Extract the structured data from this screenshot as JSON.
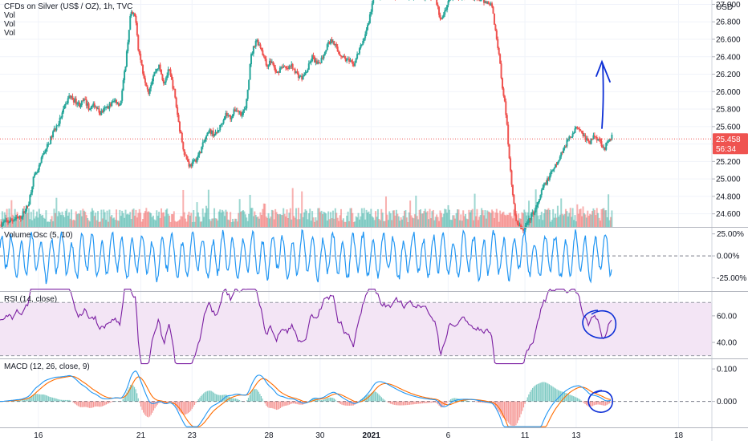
{
  "header": {
    "title": "CFDs on Silver (US$ / OZ), 1h, TVC",
    "vol_lines": [
      "Vol",
      "Vol",
      "Vol"
    ]
  },
  "currency": "USD",
  "price_badge": {
    "price": "25.458",
    "countdown": "56:34",
    "value": 25.458
  },
  "colors": {
    "up": "#26a69a",
    "down": "#ef5350",
    "osc": "#2196f3",
    "rsi": "#7b1fa2",
    "rsi_band": "#f3e5f5",
    "macd": "#2196f3",
    "signal": "#ff6d00",
    "annotation": "#0d2fd6",
    "badge": "#ef5350"
  },
  "chart_data": [
    {
      "type": "candlestick",
      "title": "CFDs on Silver (US$ / OZ), 1h, TVC",
      "x_labels": [
        "16",
        "21",
        "23",
        "28",
        "30",
        "2021",
        "6",
        "11",
        "13",
        "18"
      ],
      "x_label_positions": [
        0.5,
        4.5,
        6.5,
        9.5,
        11.5,
        13.5,
        16.5,
        19.5,
        21.5,
        25.5
      ],
      "y_ticks": [
        "27.000",
        "26.800",
        "26.600",
        "26.400",
        "26.200",
        "26.000",
        "25.800",
        "25.600",
        "25.400",
        "25.200",
        "25.000",
        "24.800",
        "24.600"
      ],
      "y_range": [
        24.45,
        27.05
      ],
      "x_range": [
        -1.0,
        26.8
      ],
      "last_price": 25.458,
      "close_path": [
        [
          -1.0,
          24.48
        ],
        [
          -0.6,
          24.52
        ],
        [
          -0.2,
          24.56
        ],
        [
          0.1,
          24.7
        ],
        [
          0.3,
          25.0
        ],
        [
          0.5,
          25.1
        ],
        [
          0.7,
          25.3
        ],
        [
          0.9,
          25.4
        ],
        [
          1.1,
          25.55
        ],
        [
          1.3,
          25.65
        ],
        [
          1.5,
          25.8
        ],
        [
          1.7,
          25.95
        ],
        [
          1.9,
          25.9
        ],
        [
          2.1,
          25.85
        ],
        [
          2.3,
          25.9
        ],
        [
          2.5,
          25.8
        ],
        [
          2.7,
          25.85
        ],
        [
          2.9,
          25.75
        ],
        [
          3.1,
          25.8
        ],
        [
          3.3,
          25.85
        ],
        [
          3.5,
          25.9
        ],
        [
          3.7,
          25.85
        ],
        [
          3.9,
          26.3
        ],
        [
          4.1,
          26.9
        ],
        [
          4.3,
          26.85
        ],
        [
          4.4,
          26.5
        ],
        [
          4.6,
          26.2
        ],
        [
          4.8,
          26.0
        ],
        [
          5.0,
          26.2
        ],
        [
          5.2,
          26.3
        ],
        [
          5.4,
          26.1
        ],
        [
          5.6,
          26.25
        ],
        [
          5.8,
          26.0
        ],
        [
          6.0,
          25.6
        ],
        [
          6.2,
          25.3
        ],
        [
          6.4,
          25.15
        ],
        [
          6.6,
          25.2
        ],
        [
          6.8,
          25.3
        ],
        [
          7.0,
          25.45
        ],
        [
          7.2,
          25.55
        ],
        [
          7.4,
          25.5
        ],
        [
          7.6,
          25.6
        ],
        [
          7.8,
          25.75
        ],
        [
          8.0,
          25.7
        ],
        [
          8.2,
          25.8
        ],
        [
          8.4,
          25.75
        ],
        [
          8.6,
          25.8
        ],
        [
          8.8,
          26.4
        ],
        [
          9.0,
          26.6
        ],
        [
          9.2,
          26.5
        ],
        [
          9.4,
          26.3
        ],
        [
          9.6,
          26.35
        ],
        [
          9.8,
          26.2
        ],
        [
          10.0,
          26.3
        ],
        [
          10.2,
          26.25
        ],
        [
          10.4,
          26.3
        ],
        [
          10.6,
          26.2
        ],
        [
          10.8,
          26.15
        ],
        [
          11.0,
          26.25
        ],
        [
          11.2,
          26.4
        ],
        [
          11.4,
          26.3
        ],
        [
          11.6,
          26.4
        ],
        [
          11.8,
          26.55
        ],
        [
          12.0,
          26.6
        ],
        [
          12.2,
          26.45
        ],
        [
          12.4,
          26.4
        ],
        [
          12.6,
          26.35
        ],
        [
          12.8,
          26.3
        ],
        [
          13.2,
          26.6
        ],
        [
          13.4,
          26.8
        ],
        [
          13.6,
          27.1
        ],
        [
          14.0,
          27.1
        ],
        [
          14.5,
          27.1
        ],
        [
          15.0,
          27.1
        ],
        [
          15.5,
          27.1
        ],
        [
          16.0,
          27.1
        ],
        [
          16.2,
          26.8
        ],
        [
          16.4,
          26.95
        ],
        [
          16.6,
          27.1
        ],
        [
          17.0,
          27.1
        ],
        [
          17.4,
          27.1
        ],
        [
          17.8,
          27.05
        ],
        [
          18.2,
          27.0
        ],
        [
          18.4,
          26.6
        ],
        [
          18.5,
          26.4
        ],
        [
          18.6,
          26.1
        ],
        [
          18.7,
          25.9
        ],
        [
          18.8,
          25.6
        ],
        [
          18.9,
          25.2
        ],
        [
          19.0,
          24.9
        ],
        [
          19.1,
          24.6
        ],
        [
          19.2,
          24.5
        ],
        [
          19.4,
          24.4
        ],
        [
          19.6,
          24.5
        ],
        [
          19.8,
          24.6
        ],
        [
          20.0,
          24.7
        ],
        [
          20.2,
          24.9
        ],
        [
          20.4,
          25.0
        ],
        [
          20.6,
          25.1
        ],
        [
          20.8,
          25.2
        ],
        [
          21.0,
          25.35
        ],
        [
          21.2,
          25.45
        ],
        [
          21.4,
          25.55
        ],
        [
          21.6,
          25.6
        ],
        [
          21.8,
          25.5
        ],
        [
          22.0,
          25.4
        ],
        [
          22.2,
          25.5
        ],
        [
          22.4,
          25.45
        ],
        [
          22.6,
          25.35
        ],
        [
          22.8,
          25.45
        ],
        [
          22.9,
          25.5
        ]
      ],
      "volume_range": [
        0,
        1.0
      ]
    },
    {
      "type": "line",
      "title": "Volume Osc (5, 10)",
      "y_ticks": [
        "25.00%",
        "0.00%",
        "-25.00%"
      ],
      "y_range": [
        -40,
        32
      ],
      "zero_line": 0
    },
    {
      "type": "line",
      "title": "RSI (14, close)",
      "y_ticks": [
        "60.00",
        "40.00"
      ],
      "y_range": [
        28,
        78
      ],
      "band": [
        30,
        70
      ]
    },
    {
      "type": "line",
      "title": "MACD (12, 26, close, 9)",
      "y_ticks": [
        "0.100",
        "0.000"
      ],
      "y_range": [
        -0.08,
        0.13
      ],
      "zero_line": 0
    }
  ]
}
